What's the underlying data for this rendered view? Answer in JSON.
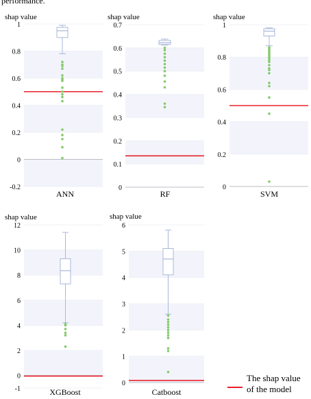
{
  "intro_text": "performance.",
  "legend": {
    "label_line1": "The shap value",
    "label_line2": "of the model",
    "color": "#e8202a"
  },
  "style": {
    "box_color": "#a9b8da",
    "outlier_color": "#86c96e",
    "band_color": "#f3f4fb",
    "ref_color": "#e8202a",
    "axis_color": "#b8bcc4"
  },
  "chart_data": [
    {
      "type": "box",
      "title": "",
      "ylabel": "shap value",
      "xlabel": "ANN",
      "yticks": [
        "1",
        "0.8",
        "0.6",
        "0.4",
        "0.2",
        "0",
        "-0.2"
      ],
      "ylim": [
        -0.2,
        1
      ],
      "box": {
        "whisker_low": 0.78,
        "q1": 0.9,
        "median": 0.95,
        "q3": 0.975,
        "whisker_high": 0.99
      },
      "outliers": [
        0.72,
        0.7,
        0.69,
        0.67,
        0.62,
        0.6,
        0.59,
        0.58,
        0.53,
        0.5,
        0.48,
        0.46,
        0.43,
        0.22,
        0.18,
        0.15,
        0.09,
        0.01
      ],
      "reference": 0.5
    },
    {
      "type": "box",
      "title": "",
      "ylabel": "shap value",
      "xlabel": "RF",
      "yticks": [
        "0.7",
        "0.6",
        "0.5",
        "0.4",
        "0.3",
        "0.2",
        "0.1",
        "0"
      ],
      "ylim": [
        0,
        0.7
      ],
      "box": {
        "whisker_low": 0.612,
        "q1": 0.615,
        "median": 0.622,
        "q3": 0.632,
        "whisker_high": 0.638
      },
      "outliers": [
        0.6,
        0.59,
        0.575,
        0.56,
        0.545,
        0.53,
        0.515,
        0.5,
        0.48,
        0.455,
        0.43,
        0.36,
        0.345
      ],
      "reference": 0.135
    },
    {
      "type": "box",
      "title": "",
      "ylabel": "shap value",
      "xlabel": "SVM",
      "yticks": [
        "1",
        "0.8",
        "0.6",
        "0.4",
        "0.2",
        "0"
      ],
      "ylim": [
        0,
        1
      ],
      "box": {
        "whisker_low": 0.87,
        "q1": 0.93,
        "median": 0.96,
        "q3": 0.975,
        "whisker_high": 0.98
      },
      "outliers": [
        0.86,
        0.85,
        0.84,
        0.83,
        0.82,
        0.81,
        0.8,
        0.79,
        0.78,
        0.77,
        0.75,
        0.73,
        0.72,
        0.7,
        0.64,
        0.62,
        0.55,
        0.45,
        0.03
      ],
      "reference": 0.5
    },
    {
      "type": "box",
      "title": "",
      "ylabel": "shap value",
      "xlabel": "XGBoost",
      "yticks": [
        "12",
        "10",
        "8",
        "6",
        "4",
        "2",
        "0",
        "-1"
      ],
      "ylim": [
        -1,
        12
      ],
      "box": {
        "whisker_low": 4.2,
        "q1": 7.3,
        "median": 8.35,
        "q3": 9.3,
        "whisker_high": 11.4
      },
      "outliers": [
        4.1,
        4.0,
        3.7,
        3.4,
        3.2,
        2.3
      ],
      "reference": -0.05
    },
    {
      "type": "box",
      "title": "",
      "ylabel": "shap value",
      "xlabel": "Catboost",
      "yticks": [
        "6",
        "5",
        "4",
        "3",
        "2",
        "1",
        "0"
      ],
      "ylim": [
        0,
        6
      ],
      "box": {
        "whisker_low": 2.6,
        "q1": 4.1,
        "median": 4.7,
        "q3": 5.1,
        "whisker_high": 5.8
      },
      "outliers": [
        2.55,
        2.4,
        2.3,
        2.2,
        2.1,
        2.0,
        1.9,
        1.8,
        1.7,
        1.3,
        1.2,
        0.4
      ],
      "reference": 0.08
    }
  ]
}
